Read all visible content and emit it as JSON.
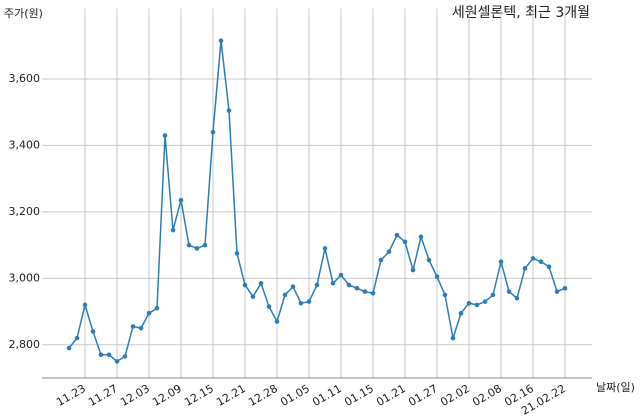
{
  "chart_data": {
    "type": "line",
    "title": "세원셀론텍, 최근 3개월",
    "y_label": "주가(원)",
    "x_label": "날짜(일)",
    "categories": [
      null,
      null,
      "11.23",
      null,
      null,
      null,
      "11.27",
      null,
      null,
      null,
      "12.03",
      null,
      null,
      null,
      "12.09",
      null,
      null,
      null,
      "12.15",
      null,
      null,
      null,
      "12.21",
      null,
      null,
      null,
      "12.28",
      null,
      null,
      null,
      "01.05",
      null,
      null,
      null,
      "01.11",
      null,
      null,
      null,
      "01.15",
      null,
      null,
      null,
      "01.21",
      null,
      null,
      null,
      "01.27",
      null,
      null,
      null,
      "02.02",
      null,
      null,
      null,
      "02.08",
      null,
      null,
      null,
      "02.16",
      null,
      null,
      null,
      "21.02.22"
    ],
    "series": [
      {
        "name": "세원셀론텍",
        "color": "#2e7db5",
        "values": [
          2790,
          2820,
          2920,
          2840,
          2770,
          2770,
          2750,
          2765,
          2855,
          2850,
          2895,
          2910,
          3430,
          3145,
          3235,
          3100,
          3090,
          3100,
          3440,
          3715,
          3505,
          3075,
          2980,
          2945,
          2985,
          2915,
          2870,
          2950,
          2975,
          2925,
          2930,
          2980,
          3090,
          2985,
          3010,
          2980,
          2970,
          2960,
          2955,
          3055,
          3080,
          3130,
          3110,
          3025,
          3125,
          3055,
          3005,
          2950,
          2820,
          2895,
          2925,
          2920,
          2930,
          2950,
          3050,
          2960,
          2940,
          3030,
          3060,
          3050,
          3035,
          2960,
          2970
        ]
      }
    ],
    "ylim": [
      2700,
      3800
    ],
    "yticks": [
      {
        "value": 2800,
        "label": "2,800"
      },
      {
        "value": 3000,
        "label": "3,000"
      },
      {
        "value": 3200,
        "label": "3,200"
      },
      {
        "value": 3400,
        "label": "3,400"
      },
      {
        "value": 3600,
        "label": "3,600"
      }
    ],
    "grid": true
  }
}
